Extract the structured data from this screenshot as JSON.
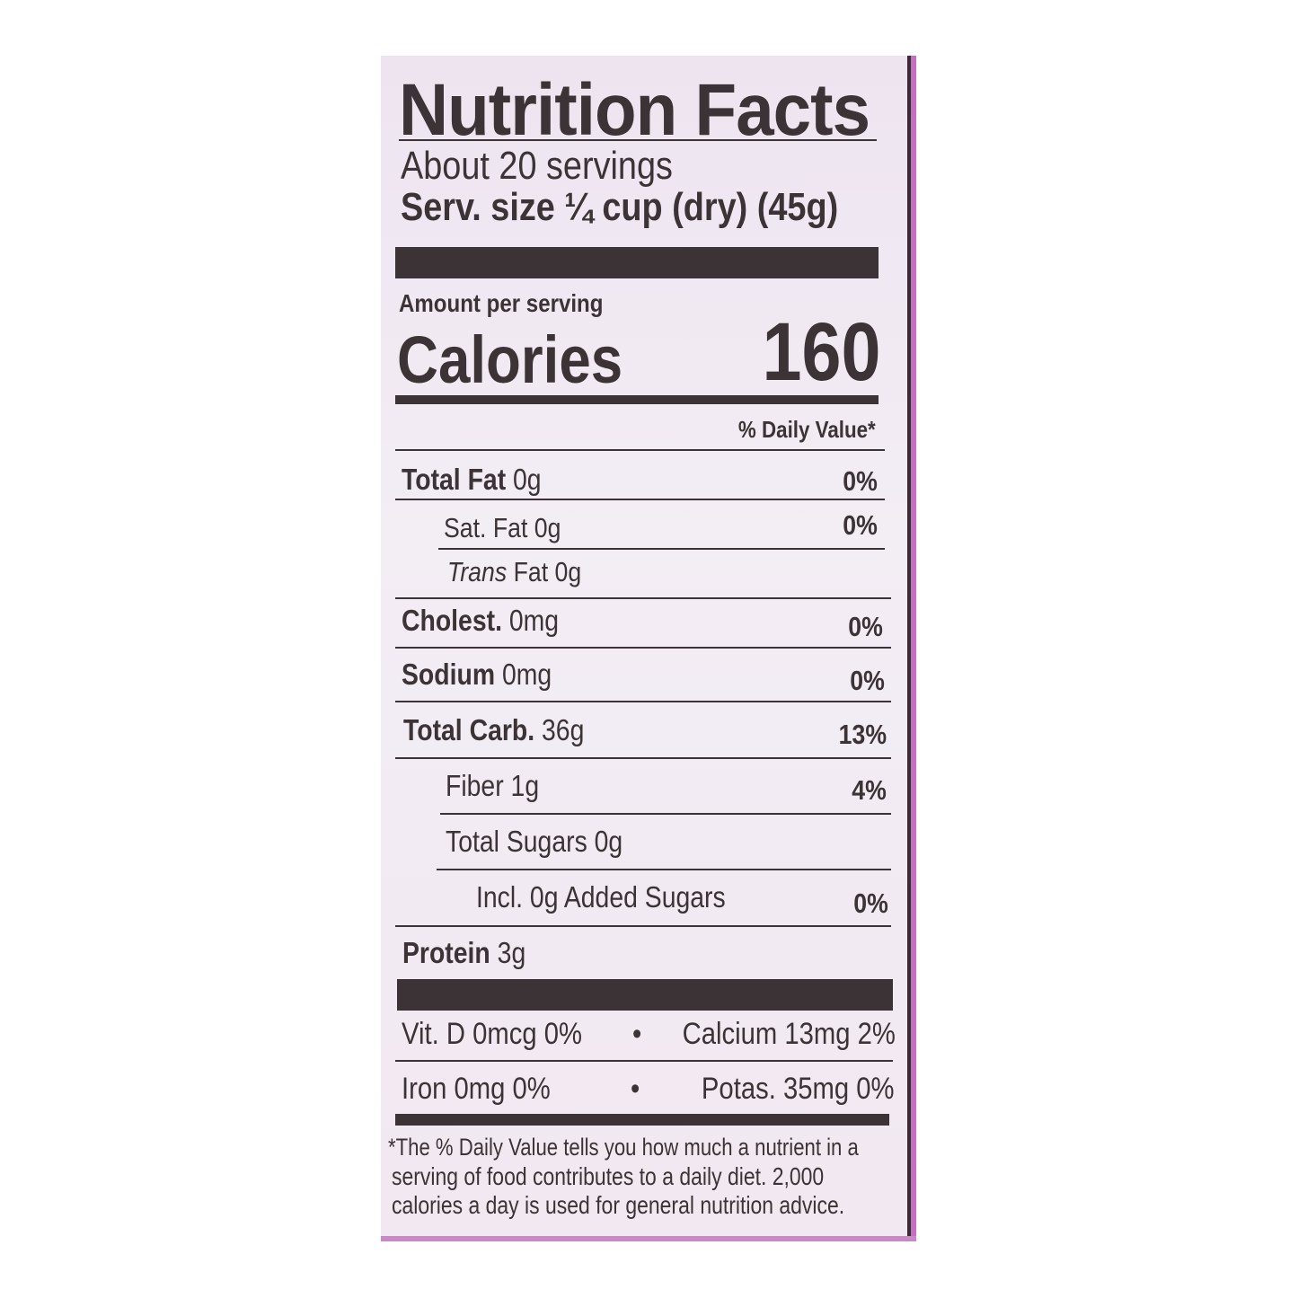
{
  "label": {
    "title": "Nutrition Facts",
    "servings": "About 20 servings",
    "serving_size": "Serv. size ¼ cup (dry) (45g)",
    "amount_per_serving": "Amount per serving",
    "calories_label": "Calories",
    "calories_value": "160",
    "daily_value_header": "% Daily Value*",
    "nutrients": [
      {
        "name": "Total Fat",
        "amount": "0g",
        "dv": "0%"
      },
      {
        "name": "Sat. Fat",
        "amount": "0g",
        "dv": "0%"
      },
      {
        "name": "Trans",
        "amount": "Fat 0g",
        "dv": ""
      },
      {
        "name": "Cholest.",
        "amount": "0mg",
        "dv": "0%"
      },
      {
        "name": "Sodium",
        "amount": "0mg",
        "dv": "0%"
      },
      {
        "name": "Total Carb.",
        "amount": "36g",
        "dv": "13%"
      },
      {
        "name": "Fiber",
        "amount": "1g",
        "dv": "4%"
      },
      {
        "name": "Total Sugars",
        "amount": "0g",
        "dv": ""
      },
      {
        "name": "Incl. 0g Added Sugars",
        "amount": "",
        "dv": "0%"
      },
      {
        "name": "Protein",
        "amount": "3g",
        "dv": ""
      }
    ],
    "micros": [
      {
        "left": "Vit. D 0mcg 0%",
        "bullet": "•",
        "right": "Calcium 13mg 2%"
      },
      {
        "left": "Iron 0mg 0%",
        "bullet": "•",
        "right": "Potas. 35mg 0%"
      }
    ],
    "footnote": [
      "*The % Daily Value tells you how much a nutrient in a",
      "serving of food contributes to a daily diet. 2,000",
      "calories a day is used for general nutrition advice."
    ]
  },
  "colors": {
    "ink": "#3b3335",
    "background": "#ede4f0",
    "edge": "#c46fbf"
  }
}
